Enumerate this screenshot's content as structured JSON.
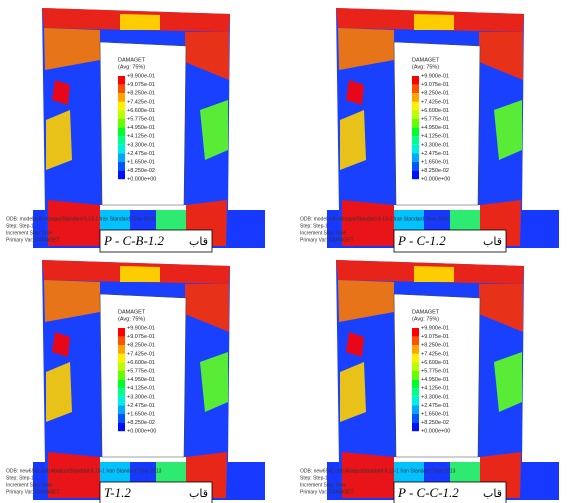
{
  "panels": [
    {
      "legend_title": "DAMAGET",
      "legend_subtitle": "(Avg: 75%)",
      "caption": "P - C-B-1.2",
      "caption_prefix": "قاب",
      "legend_values": [
        "+9.900e-01",
        "+9.075e-01",
        "+8.250e-01",
        "+7.425e-01",
        "+6.600e-01",
        "+5.775e-01",
        "+4.950e-01",
        "+4.125e-01",
        "+3.300e-01",
        "+2.475e-01",
        "+1.650e-01",
        "+8.250e-02",
        "+0.000e+00"
      ],
      "footer": [
        "ODB: model.odb    Abaqus/Standard 6.13-1    Iran Standard Time 2013",
        "Step: Step-1",
        "Increment     Step Time",
        "Primary Var: DAMAGET"
      ]
    },
    {
      "legend_title": "DAMAGET",
      "legend_subtitle": "(Avg: 75%)",
      "caption": "P - C-1.2",
      "caption_prefix": "قاب",
      "legend_values": [
        "+9.900e-01",
        "+9.075e-01",
        "+8.250e-01",
        "+7.425e-01",
        "+6.600e-01",
        "+5.775e-01",
        "+4.950e-01",
        "+4.125e-01",
        "+3.300e-01",
        "+2.475e-01",
        "+1.650e-01",
        "+8.250e-02",
        "+0.000e+00"
      ],
      "footer": [
        "ODB: model.odb    Abaqus/Standard 6.13-1    Iran Standard Time 2013",
        "Step: Step-1",
        "Increment     Step Time",
        "Primary Var: DAMAGET"
      ]
    },
    {
      "legend_title": "DAMAGET",
      "legend_subtitle": "(Avg: 75%)",
      "caption": "T-1.2",
      "caption_prefix": "قاب",
      "legend_values": [
        "+9.900e-01",
        "+9.075e-01",
        "+8.250e-01",
        "+7.425e-01",
        "+6.600e-01",
        "+5.775e-01",
        "+4.950e-01",
        "+4.125e-01",
        "+3.300e-01",
        "+2.475e-01",
        "+1.650e-01",
        "+8.250e-02",
        "+0.000e+00"
      ],
      "footer": [
        "ODB: new6541.odb    Abaqus/Standard 6.13-1    Iran Standard Time 2013",
        "Step: Step-1",
        "Increment     Step Time",
        "Primary Var: DAMAGET"
      ]
    },
    {
      "legend_title": "DAMAGET",
      "legend_subtitle": "(Avg: 75%)",
      "caption": "P - C-C-1.2",
      "caption_prefix": "قاب",
      "legend_values": [
        "+9.900e-01",
        "+9.075e-01",
        "+8.250e-01",
        "+7.425e-01",
        "+6.600e-01",
        "+5.775e-01",
        "+4.950e-01",
        "+4.125e-01",
        "+3.300e-01",
        "+2.475e-01",
        "+1.650e-01",
        "+8.250e-02",
        "+0.000e+00"
      ],
      "footer": [
        "ODB: new6541.odb    Abaqus/Standard 6.13-1    Iran Standard Time 2013",
        "Step: Step-1",
        "Increment     Step Time",
        "Primary Var: DAMAGET"
      ]
    }
  ]
}
